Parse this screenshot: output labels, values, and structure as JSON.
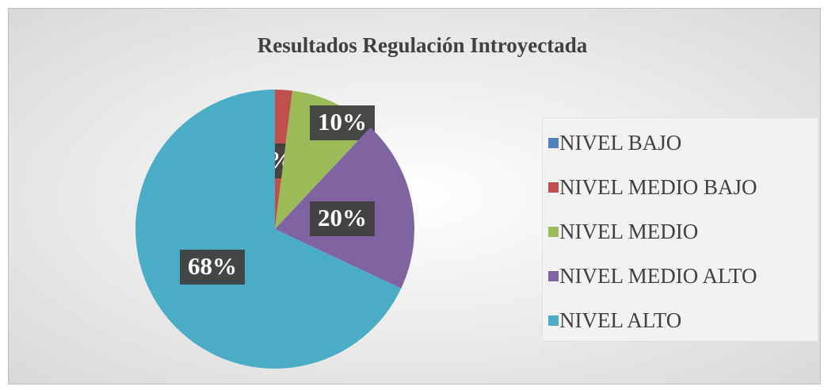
{
  "chart_data": {
    "type": "pie",
    "title": "Resultados Regulación Introyectada",
    "categories": [
      "NIVEL BAJO",
      "NIVEL MEDIO BAJO",
      "NIVEL MEDIO",
      "NIVEL MEDIO ALTO",
      "NIVEL ALTO"
    ],
    "values": [
      0,
      2,
      10,
      20,
      68
    ],
    "value_labels": [
      null,
      "2%",
      "10%",
      "20%",
      "68%"
    ],
    "colors": [
      "#4f81bd",
      "#c0504d",
      "#9bbb59",
      "#8064a2",
      "#4bacc6"
    ],
    "legend": "right"
  }
}
